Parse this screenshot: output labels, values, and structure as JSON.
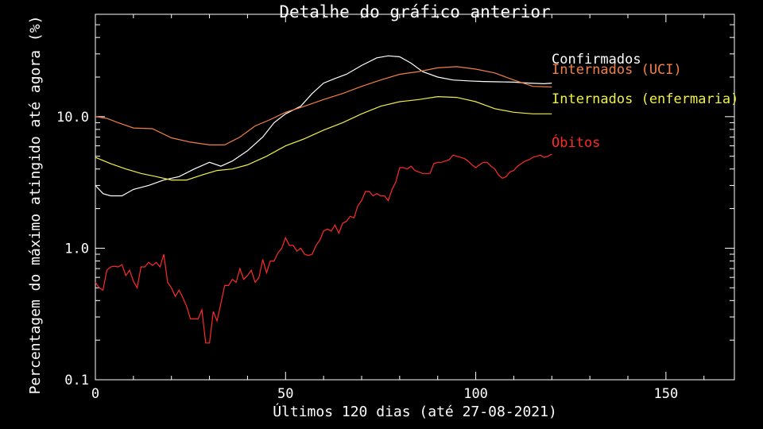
{
  "chart_data": {
    "type": "line",
    "title": "Detalhe do gráfico anterior",
    "xlabel": "Últimos 120 dias (até 27-08-2021)",
    "ylabel": "Percentagem do máximo atingido até agora (%)",
    "xlim": [
      0,
      168
    ],
    "ylim": [
      0.1,
      60
    ],
    "yscale": "log",
    "grid": false,
    "x_ticks": [
      0,
      50,
      100,
      150
    ],
    "x_tick_labels": [
      "0",
      "50",
      "100",
      "150"
    ],
    "y_ticks": [
      0.1,
      1.0,
      10.0
    ],
    "y_tick_labels": [
      "0.1",
      "1.0",
      "10.0"
    ],
    "series": [
      {
        "name": "Confirmados",
        "color": "#ffffff",
        "x": [
          0,
          2,
          4,
          7,
          10,
          14,
          18,
          22,
          26,
          30,
          33,
          36,
          40,
          44,
          47,
          50,
          54,
          57,
          60,
          63,
          66,
          70,
          74,
          77,
          80,
          83,
          86,
          90,
          94,
          98,
          102,
          106,
          110,
          114,
          118,
          120
        ],
        "y": [
          3.0,
          2.6,
          2.5,
          2.5,
          2.8,
          3.0,
          3.3,
          3.5,
          4.0,
          4.5,
          4.2,
          4.6,
          5.5,
          7.0,
          9.0,
          10.5,
          12.0,
          15.0,
          18.0,
          19.5,
          21.0,
          24.5,
          28.0,
          29.0,
          28.5,
          25.5,
          22.0,
          20.0,
          19.0,
          18.7,
          18.5,
          18.4,
          18.3,
          18.0,
          17.8,
          18.0
        ]
      },
      {
        "name": "Internados (UCI)",
        "color": "#f08048",
        "x": [
          0,
          3,
          6,
          10,
          15,
          20,
          25,
          30,
          34,
          38,
          42,
          46,
          50,
          55,
          60,
          65,
          70,
          75,
          80,
          85,
          90,
          95,
          100,
          105,
          110,
          115,
          120
        ],
        "y": [
          10.0,
          9.7,
          9.0,
          8.2,
          8.1,
          6.9,
          6.4,
          6.1,
          6.1,
          7.0,
          8.5,
          9.5,
          10.8,
          12.0,
          13.5,
          15.0,
          17.0,
          19.0,
          21.0,
          22.0,
          23.5,
          24.0,
          23.0,
          21.5,
          19.0,
          17.0,
          16.8
        ]
      },
      {
        "name": "Internados (enfermaria)",
        "color": "#f0f048",
        "x": [
          0,
          4,
          8,
          12,
          16,
          20,
          24,
          28,
          32,
          36,
          40,
          45,
          50,
          55,
          60,
          65,
          70,
          75,
          80,
          85,
          90,
          95,
          100,
          105,
          110,
          115,
          120
        ],
        "y": [
          4.9,
          4.4,
          4.0,
          3.7,
          3.5,
          3.3,
          3.3,
          3.6,
          3.9,
          4.0,
          4.3,
          5.0,
          6.0,
          6.8,
          7.9,
          9.0,
          10.5,
          12.0,
          13.0,
          13.5,
          14.2,
          14.0,
          13.0,
          11.5,
          10.8,
          10.5,
          10.5
        ]
      },
      {
        "name": "Óbitos",
        "color": "#ff2a2a",
        "x": [
          0,
          1,
          2,
          3,
          4,
          5,
          6,
          7,
          8,
          9,
          10,
          11,
          12,
          13,
          14,
          15,
          16,
          17,
          18,
          19,
          20,
          21,
          22,
          23,
          24,
          25,
          26,
          27,
          28,
          29,
          30,
          31,
          32,
          33,
          34,
          35,
          36,
          37,
          38,
          39,
          40,
          41,
          42,
          43,
          44,
          45,
          46,
          47,
          48,
          49,
          50,
          51,
          52,
          53,
          54,
          55,
          56,
          57,
          58,
          59,
          60,
          61,
          62,
          63,
          64,
          65,
          66,
          67,
          68,
          69,
          70,
          71,
          72,
          73,
          74,
          75,
          76,
          77,
          78,
          79,
          80,
          81,
          82,
          83,
          84,
          85,
          86,
          87,
          88,
          89,
          90,
          91,
          92,
          93,
          94,
          95,
          96,
          97,
          98,
          99,
          100,
          101,
          102,
          103,
          104,
          105,
          106,
          107,
          108,
          109,
          110,
          111,
          112,
          113,
          114,
          115,
          116,
          117,
          118,
          119,
          120
        ],
        "y": [
          0.55,
          0.5,
          0.48,
          0.68,
          0.72,
          0.73,
          0.72,
          0.75,
          0.62,
          0.68,
          0.56,
          0.5,
          0.72,
          0.72,
          0.78,
          0.74,
          0.78,
          0.72,
          0.9,
          0.55,
          0.5,
          0.43,
          0.48,
          0.42,
          0.36,
          0.29,
          0.29,
          0.29,
          0.34,
          0.19,
          0.19,
          0.33,
          0.28,
          0.38,
          0.52,
          0.52,
          0.58,
          0.55,
          0.7,
          0.58,
          0.62,
          0.68,
          0.55,
          0.6,
          0.82,
          0.65,
          0.8,
          0.8,
          0.92,
          1.0,
          1.2,
          1.05,
          1.05,
          0.95,
          1.0,
          0.9,
          0.88,
          0.9,
          1.05,
          1.15,
          1.35,
          1.4,
          1.35,
          1.5,
          1.3,
          1.55,
          1.6,
          1.75,
          1.7,
          2.1,
          2.3,
          2.7,
          2.7,
          2.5,
          2.6,
          2.5,
          2.5,
          2.3,
          2.8,
          3.2,
          4.1,
          4.1,
          4.0,
          4.2,
          3.9,
          3.8,
          3.7,
          3.7,
          3.7,
          4.4,
          4.5,
          4.5,
          4.6,
          4.7,
          5.1,
          5.0,
          4.9,
          4.8,
          4.6,
          4.3,
          4.1,
          4.3,
          4.5,
          4.5,
          4.2,
          4.0,
          3.6,
          3.4,
          3.5,
          3.8,
          3.9,
          4.2,
          4.4,
          4.6,
          4.7,
          4.9,
          5.0,
          5.1,
          4.9,
          5.0,
          5.2
        ]
      }
    ],
    "series_labels": [
      {
        "text": "Confirmados",
        "color": "#ffffff"
      },
      {
        "text": "Internados (UCI)",
        "color": "#f08048"
      },
      {
        "text": "Internados (enfermaria)",
        "color": "#f0f048"
      },
      {
        "text": "Óbitos",
        "color": "#ff2a2a"
      }
    ]
  }
}
